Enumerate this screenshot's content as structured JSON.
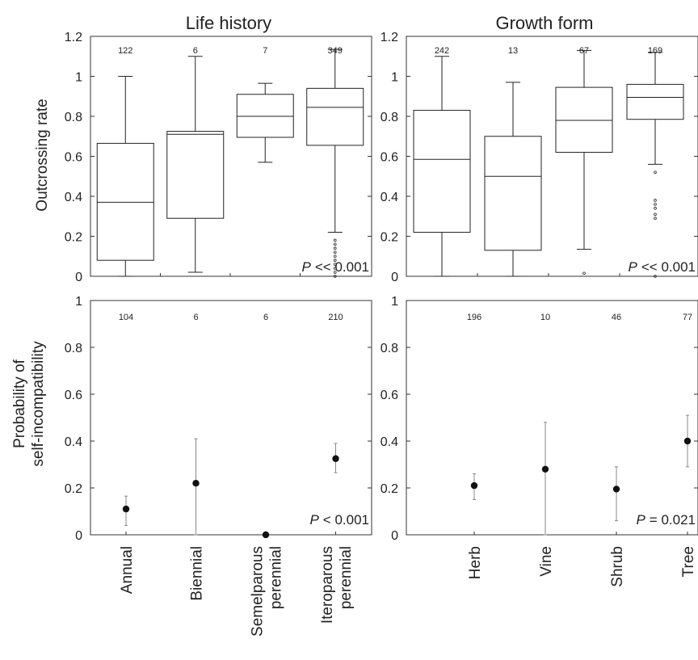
{
  "column_titles": [
    "Life history",
    "Growth form"
  ],
  "row_ylabels": {
    "top": "Outcrossing rate",
    "bottom_line1": "Probability of",
    "bottom_line2": "self-incompatibility"
  },
  "colors": {
    "axis": "#333333",
    "box": "#222222",
    "point": "#111111",
    "errorbar": "#888888"
  },
  "chart_data": [
    {
      "type": "box",
      "title": "Life history",
      "ylabel": "Outcrossing rate",
      "ylim": [
        0,
        1.2
      ],
      "yticks": [
        "0",
        "0.2",
        "0.4",
        "0.6",
        "0.8",
        "1",
        "1.2"
      ],
      "categories": [
        "Annual",
        "Biennial",
        "Semelparous perennial",
        "Iteroparous perennial"
      ],
      "counts": [
        "122",
        "6",
        "7",
        "349"
      ],
      "boxes": [
        {
          "whisker_low": 0.0,
          "q1": 0.08,
          "median": 0.37,
          "q3": 0.665,
          "whisker_high": 1.0,
          "outliers": []
        },
        {
          "whisker_low": 0.02,
          "q1": 0.29,
          "median": 0.71,
          "q3": 0.725,
          "whisker_high": 1.1,
          "outliers": []
        },
        {
          "whisker_low": 0.57,
          "q1": 0.695,
          "median": 0.8,
          "q3": 0.91,
          "whisker_high": 0.965,
          "outliers": []
        },
        {
          "whisker_low": 0.22,
          "q1": 0.655,
          "median": 0.845,
          "q3": 0.94,
          "whisker_high": 1.135,
          "outliers": [
            0.18,
            0.16,
            0.14,
            0.12,
            0.1,
            0.08,
            0.06,
            0.04,
            0.02,
            0.0
          ]
        }
      ],
      "p_label": "P",
      "p_value": "<< 0.001"
    },
    {
      "type": "box",
      "title": "Growth form",
      "ylabel": "",
      "ylim": [
        0,
        1.2
      ],
      "yticks": [
        "0",
        "0.2",
        "0.4",
        "0.6",
        "0.8",
        "1",
        "1.2"
      ],
      "categories": [
        "Herb",
        "Vine",
        "Shrub",
        "Tree"
      ],
      "counts": [
        "242",
        "13",
        "67",
        "169"
      ],
      "boxes": [
        {
          "whisker_low": 0.0,
          "q1": 0.22,
          "median": 0.585,
          "q3": 0.83,
          "whisker_high": 1.1,
          "outliers": []
        },
        {
          "whisker_low": 0.0,
          "q1": 0.13,
          "median": 0.5,
          "q3": 0.7,
          "whisker_high": 0.97,
          "outliers": []
        },
        {
          "whisker_low": 0.135,
          "q1": 0.62,
          "median": 0.78,
          "q3": 0.945,
          "whisker_high": 1.13,
          "outliers": [
            0.015
          ]
        },
        {
          "whisker_low": 0.56,
          "q1": 0.785,
          "median": 0.895,
          "q3": 0.96,
          "whisker_high": 1.12,
          "outliers": [
            0.52,
            0.38,
            0.36,
            0.34,
            0.31,
            0.29,
            0.0
          ]
        }
      ],
      "p_label": "P",
      "p_value": "<< 0.001"
    },
    {
      "type": "scatter",
      "title": "",
      "ylabel": "Probability of self-incompatibility",
      "ylim": [
        0,
        1
      ],
      "yticks": [
        "0",
        "0.2",
        "0.4",
        "0.6",
        "0.8",
        "1"
      ],
      "categories": [
        "Annual",
        "Biennial",
        "Semelparous perennial",
        "Iteroparous perennial"
      ],
      "category_lines": [
        [
          "Annual"
        ],
        [
          "Biennial"
        ],
        [
          "Semelparous",
          "perennial"
        ],
        [
          "Iteroparous",
          "perennial"
        ]
      ],
      "counts": [
        "104",
        "6",
        "6",
        "210"
      ],
      "points": [
        {
          "value": 0.11,
          "low": 0.04,
          "high": 0.165
        },
        {
          "value": 0.22,
          "low": 0.0,
          "high": 0.41
        },
        {
          "value": 0.0,
          "low": 0.0,
          "high": 0.0
        },
        {
          "value": 0.325,
          "low": 0.265,
          "high": 0.39
        }
      ],
      "p_label": "P",
      "p_value": "< 0.001"
    },
    {
      "type": "scatter",
      "title": "",
      "ylabel": "",
      "ylim": [
        0,
        1
      ],
      "yticks": [
        "0",
        "0.2",
        "0.4",
        "0.6",
        "0.8",
        "1"
      ],
      "categories": [
        "Herb",
        "Vine",
        "Shrub",
        "Tree"
      ],
      "category_lines": [
        [
          "Herb"
        ],
        [
          "Vine"
        ],
        [
          "Shrub"
        ],
        [
          "Tree"
        ]
      ],
      "counts": [
        "196",
        "10",
        "46",
        "77"
      ],
      "points": [
        {
          "value": 0.21,
          "low": 0.15,
          "high": 0.26
        },
        {
          "value": 0.28,
          "low": 0.0,
          "high": 0.48
        },
        {
          "value": 0.195,
          "low": 0.06,
          "high": 0.29
        },
        {
          "value": 0.4,
          "low": 0.29,
          "high": 0.51
        }
      ],
      "p_label": "P",
      "p_value": "= 0.021"
    }
  ]
}
